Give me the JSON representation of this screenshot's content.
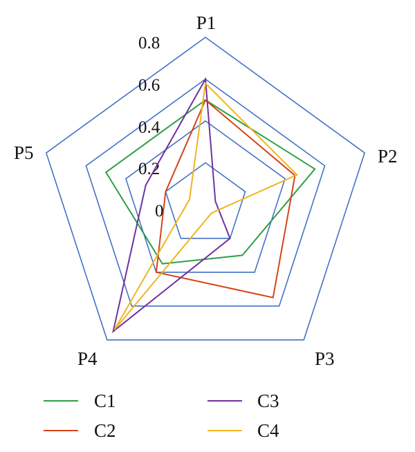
{
  "chart_data": {
    "type": "radar",
    "categories": [
      "P1",
      "P2",
      "P3",
      "P4",
      "P5"
    ],
    "rlim": [
      0,
      0.8
    ],
    "rticks": [
      "0",
      "0.2",
      "0.4",
      "0.6",
      "0.8"
    ],
    "grid": true,
    "legend_position": "bottom",
    "series": [
      {
        "name": "C1",
        "color": "#2e9e45",
        "values": [
          0.5,
          0.55,
          0.3,
          0.35,
          0.5
        ]
      },
      {
        "name": "C2",
        "color": "#d5431a",
        "values": [
          0.5,
          0.45,
          0.55,
          0.4,
          0.2
        ]
      },
      {
        "name": "C3",
        "color": "#7030a0",
        "values": [
          0.6,
          0.05,
          0.2,
          0.75,
          0.3
        ]
      },
      {
        "name": "C4",
        "color": "#f0b41c",
        "values": [
          0.58,
          0.46,
          0.05,
          0.74,
          0.08
        ]
      }
    ],
    "grid_color": "#4472c4"
  }
}
